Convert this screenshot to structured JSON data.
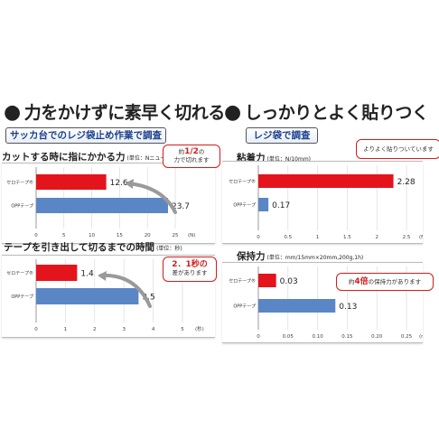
{
  "headings": {
    "left": "力をかけずに素早く切れる",
    "right": "しっかりとよく貼りつく",
    "bullet": "●"
  },
  "subtitles": {
    "left": "サッカ台でのレジ袋止め作業で調査",
    "right": "レジ袋で調査"
  },
  "colors": {
    "red": "#e4141c",
    "blue": "#5b86c6",
    "callout_border": "#d31c1c"
  },
  "chart_data": [
    {
      "type": "bar",
      "orientation": "horizontal",
      "title": "カットする時に指にかかる力",
      "unit_label": "(単位：Nニュートン)",
      "categories": [
        "セロテープ®",
        "OPPテープ"
      ],
      "values": [
        12.6,
        23.7
      ],
      "value_labels": [
        "12.6",
        "23.7"
      ],
      "xlim": [
        0,
        25
      ],
      "xticks": [
        "0",
        "5",
        "10",
        "15",
        "20",
        "25"
      ],
      "axis_unit": "(N)",
      "callout": {
        "pre": "約",
        "em": "1/2",
        "post": "の",
        "line2": "力で切れます"
      }
    },
    {
      "type": "bar",
      "orientation": "horizontal",
      "title": "テープを引き出して切るまでの時間",
      "unit_label": "(単位：秒)",
      "categories": [
        "セロテープ®",
        "OPPテープ"
      ],
      "values": [
        1.4,
        3.5
      ],
      "value_labels": [
        "1.4",
        "3.5"
      ],
      "xlim": [
        0,
        5
      ],
      "xticks": [
        "0",
        "1",
        "2",
        "3",
        "4",
        "5"
      ],
      "axis_unit": "(秒)",
      "callout": {
        "pre": "",
        "em": "2．1秒の",
        "post": "",
        "line2": "差があります"
      }
    },
    {
      "type": "bar",
      "orientation": "horizontal",
      "title": "粘着力",
      "unit_label": "(単位：N/10mm)",
      "categories": [
        "セロテープ®",
        "OPPテープ"
      ],
      "values": [
        2.28,
        0.17
      ],
      "value_labels": [
        "2.28",
        "0.17"
      ],
      "xlim": [
        0,
        2.5
      ],
      "xticks": [
        "0",
        "0.5",
        "1",
        "1.5",
        "2",
        "2.5"
      ],
      "axis_unit": "(N)",
      "callout": {
        "pre": "",
        "em": "",
        "post": "よりよく貼りついています",
        "line2": ""
      }
    },
    {
      "type": "bar",
      "orientation": "horizontal",
      "title": "保持力",
      "unit_label": "(単位：mm/15mm×20mm,200g,1h)",
      "categories": [
        "セロテープ®",
        "OPPテープ"
      ],
      "values": [
        0.03,
        0.13
      ],
      "value_labels": [
        "0.03",
        "0.13"
      ],
      "xlim": [
        0,
        0.25
      ],
      "xticks": [
        "0",
        "0.05",
        "0.10",
        "0.15",
        "0.20",
        "0.25"
      ],
      "axis_unit": "(mm)",
      "callout": {
        "pre": "約",
        "em": "4倍",
        "post": "の保持力があります",
        "line2": ""
      }
    }
  ]
}
